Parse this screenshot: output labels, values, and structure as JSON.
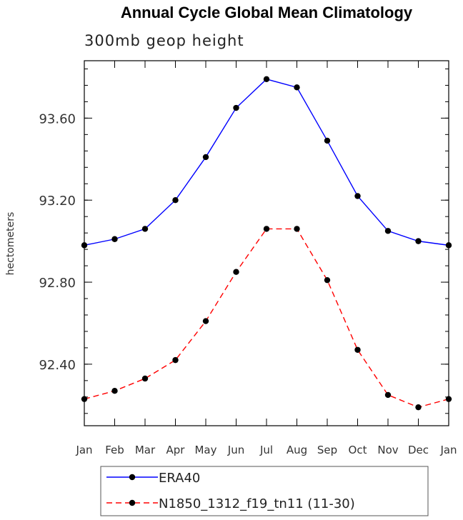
{
  "chart_data": {
    "type": "line",
    "title": "Annual Cycle Global Mean Climatology",
    "subtitle": "300mb geop height",
    "ylabel": "hectometers",
    "xlabel": "",
    "categories": [
      "Jan",
      "Feb",
      "Mar",
      "Apr",
      "May",
      "Jun",
      "Jul",
      "Aug",
      "Sep",
      "Oct",
      "Nov",
      "Dec",
      "Jan"
    ],
    "ylim": [
      92.1,
      93.88
    ],
    "yticks": [
      92.4,
      92.8,
      93.2,
      93.6
    ],
    "ytick_labels": [
      "92.40",
      "92.80",
      "93.20",
      "93.60"
    ],
    "yminor_step": 0.08,
    "series": [
      {
        "name": "ERA40",
        "color": "#0000ff",
        "dash": "solid",
        "values": [
          92.98,
          93.01,
          93.06,
          93.2,
          93.41,
          93.65,
          93.79,
          93.75,
          93.49,
          93.22,
          93.05,
          93.0,
          92.98
        ]
      },
      {
        "name": "N1850_1312_f19_tn11 (11-30)",
        "color": "#ff0000",
        "dash": "dashed",
        "values": [
          92.23,
          92.27,
          92.33,
          92.42,
          92.61,
          92.85,
          93.06,
          93.06,
          92.81,
          92.47,
          92.25,
          92.19,
          92.23
        ]
      }
    ],
    "legend_position": "bottom"
  }
}
